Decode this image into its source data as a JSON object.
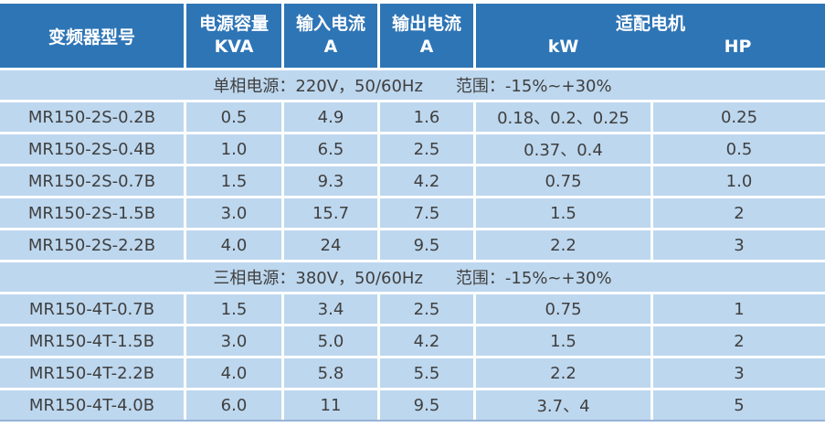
{
  "chart_data": {
    "type": "table",
    "header": {
      "model": "变频器型号",
      "capacity": "电源容量",
      "capacity_unit": "KVA",
      "input": "输入电流",
      "input_unit": "A",
      "output": "输出电流",
      "output_unit": "A",
      "motor": "适配电机",
      "motor_kw": "kW",
      "motor_hp": "HP"
    },
    "sections": [
      {
        "power": "单相电源：220V，50/60Hz",
        "range": "范围：-15%~+30%",
        "rows": [
          {
            "model": "MR150-2S-0.2B",
            "kva": "0.5",
            "input_a": "4.9",
            "output_a": "1.6",
            "kw": "0.18、0.2、0.25",
            "hp": "0.25"
          },
          {
            "model": "MR150-2S-0.4B",
            "kva": "1.0",
            "input_a": "6.5",
            "output_a": "2.5",
            "kw": "0.37、0.4",
            "hp": "0.5"
          },
          {
            "model": "MR150-2S-0.7B",
            "kva": "1.5",
            "input_a": "9.3",
            "output_a": "4.2",
            "kw": "0.75",
            "hp": "1.0"
          },
          {
            "model": "MR150-2S-1.5B",
            "kva": "3.0",
            "input_a": "15.7",
            "output_a": "7.5",
            "kw": "1.5",
            "hp": "2"
          },
          {
            "model": "MR150-2S-2.2B",
            "kva": "4.0",
            "input_a": "24",
            "output_a": "9.5",
            "kw": "2.2",
            "hp": "3"
          }
        ]
      },
      {
        "power": "三相电源：380V，50/60Hz",
        "range": "范围：-15%~+30%",
        "rows": [
          {
            "model": "MR150-4T-0.7B",
            "kva": "1.5",
            "input_a": "3.4",
            "output_a": "2.5",
            "kw": "0.75",
            "hp": "1"
          },
          {
            "model": "MR150-4T-1.5B",
            "kva": "3.0",
            "input_a": "5.0",
            "output_a": "4.2",
            "kw": "1.5",
            "hp": "2"
          },
          {
            "model": "MR150-4T-2.2B",
            "kva": "4.0",
            "input_a": "5.8",
            "output_a": "5.5",
            "kw": "2.2",
            "hp": "3"
          },
          {
            "model": "MR150-4T-4.0B",
            "kva": "6.0",
            "input_a": "11",
            "output_a": "9.5",
            "kw": "3.7、4",
            "hp": "5"
          }
        ]
      }
    ],
    "layout": {
      "grid": "white 3px gridlines between cells",
      "column_count": 6,
      "merged_section_rows": true
    }
  },
  "colors": {
    "header_bg": "#2E75B6",
    "header_text": "#FFFFFF",
    "row_bg": "#BDD7EE",
    "body_text": "#3F3F3F",
    "gridline": "#FFFFFF",
    "outer_bottom_border": "#95B3D7"
  }
}
